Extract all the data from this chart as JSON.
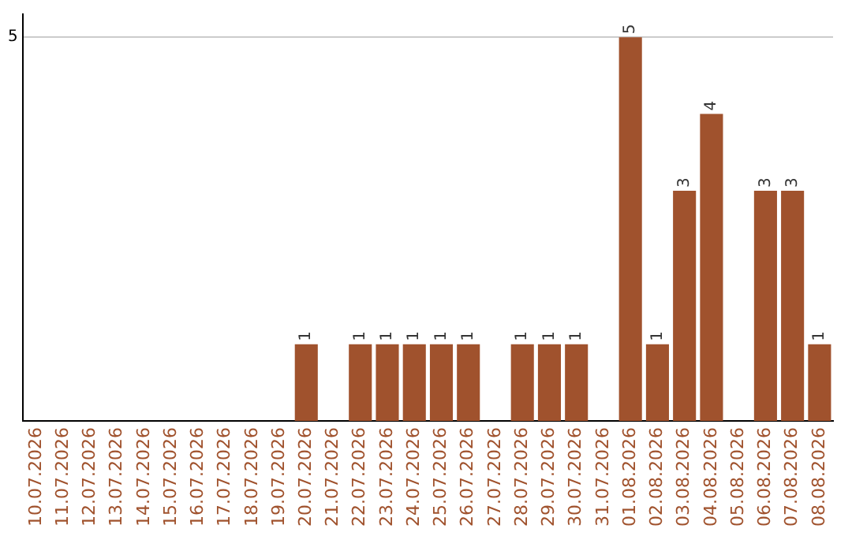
{
  "chart_data": {
    "type": "bar",
    "categories": [
      "10.07.2026",
      "11.07.2026",
      "12.07.2026",
      "13.07.2026",
      "14.07.2026",
      "15.07.2026",
      "16.07.2026",
      "17.07.2026",
      "18.07.2026",
      "19.07.2026",
      "20.07.2026",
      "21.07.2026",
      "22.07.2026",
      "23.07.2026",
      "24.07.2026",
      "25.07.2026",
      "26.07.2026",
      "27.07.2026",
      "28.07.2026",
      "29.07.2026",
      "30.07.2026",
      "31.07.2026",
      "01.08.2026",
      "02.08.2026",
      "03.08.2026",
      "04.08.2026",
      "05.08.2026",
      "06.08.2026",
      "07.08.2026",
      "08.08.2026"
    ],
    "values": [
      0,
      0,
      0,
      0,
      0,
      0,
      0,
      0,
      0,
      0,
      1,
      0,
      1,
      1,
      1,
      1,
      1,
      0,
      1,
      1,
      1,
      0,
      5,
      1,
      3,
      4,
      0,
      3,
      3,
      1
    ],
    "value_labels": [
      null,
      null,
      null,
      null,
      null,
      null,
      null,
      null,
      null,
      null,
      "1",
      null,
      "1",
      "1",
      "1",
      "1",
      "1",
      null,
      "1",
      "1",
      "1",
      null,
      "5",
      "1",
      "3",
      "4",
      null,
      "3",
      "3",
      "1"
    ],
    "color": "#a0522d",
    "ylim": [
      0,
      5.3
    ],
    "yticks": [
      5
    ],
    "grid": "y"
  }
}
